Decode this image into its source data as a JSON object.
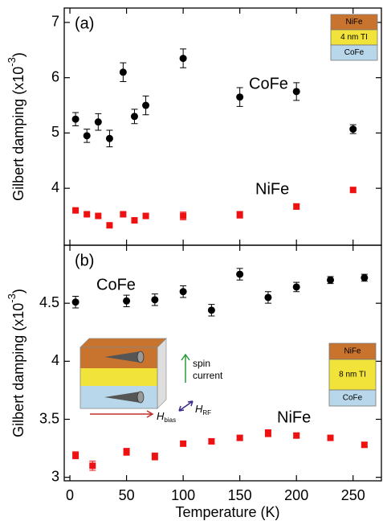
{
  "chart_data": [
    {
      "type": "scatter",
      "panel_label": "(a)",
      "xlim": [
        -5,
        275
      ],
      "ylim": [
        2.97,
        7.26
      ],
      "yticks": [
        4,
        5,
        6,
        7
      ],
      "ylabel": [
        "Gilbert damping (x10",
        "-3",
        ")"
      ],
      "stack": [
        "NiFe",
        "4 nm TI",
        "CoFe"
      ],
      "series": [
        {
          "name": "CoFe",
          "color": "#000000",
          "marker": "circle",
          "x": [
            5,
            15,
            25,
            35,
            47,
            57,
            67,
            100,
            150,
            200,
            250
          ],
          "values": [
            5.25,
            4.95,
            5.2,
            4.9,
            6.1,
            5.3,
            5.5,
            6.35,
            5.65,
            5.75,
            5.07
          ],
          "errors": [
            0.12,
            0.12,
            0.15,
            0.15,
            0.17,
            0.13,
            0.17,
            0.17,
            0.17,
            0.16,
            0.08
          ]
        },
        {
          "name": "NiFe",
          "color": "#ee1111",
          "marker": "square",
          "x": [
            5,
            15,
            25,
            35,
            47,
            57,
            67,
            100,
            150,
            200,
            250
          ],
          "values": [
            3.6,
            3.53,
            3.5,
            3.33,
            3.53,
            3.42,
            3.5,
            3.5,
            3.52,
            3.67,
            3.97
          ],
          "errors": [
            0.03,
            0.03,
            0.03,
            0.03,
            0.03,
            0.03,
            0.03,
            0.07,
            0.06,
            0.05,
            0.04
          ]
        }
      ]
    },
    {
      "type": "scatter",
      "panel_label": "(b)",
      "xlim": [
        -5,
        275
      ],
      "xticks": [
        0,
        50,
        100,
        150,
        200,
        250
      ],
      "xlabel": "Temperature (K)",
      "ylim": [
        2.97,
        5.0
      ],
      "yticks": [
        3,
        3.5,
        4,
        4.5
      ],
      "ylabel": [
        "Gilbert damping (x10",
        "-3",
        ")"
      ],
      "stack": [
        "NiFe",
        "8 nm TI",
        "CoFe"
      ],
      "diagram_labels": {
        "spin_current": [
          "spin",
          "current"
        ],
        "h_bias": [
          "H",
          "bias"
        ],
        "h_rf": [
          "H",
          "RF"
        ]
      },
      "series": [
        {
          "name": "CoFe",
          "color": "#000000",
          "marker": "circle",
          "x": [
            5,
            50,
            75,
            100,
            125,
            150,
            175,
            200,
            230,
            260
          ],
          "values": [
            4.51,
            4.52,
            4.53,
            4.6,
            4.44,
            4.75,
            4.55,
            4.64,
            4.7,
            4.72
          ],
          "errors": [
            0.05,
            0.05,
            0.05,
            0.05,
            0.05,
            0.05,
            0.05,
            0.04,
            0.03,
            0.03
          ]
        },
        {
          "name": "NiFe",
          "color": "#ee1111",
          "marker": "square",
          "x": [
            5,
            20,
            50,
            75,
            100,
            125,
            150,
            175,
            200,
            230,
            260
          ],
          "values": [
            3.19,
            3.1,
            3.22,
            3.18,
            3.29,
            3.31,
            3.34,
            3.38,
            3.36,
            3.34,
            3.28
          ],
          "errors": [
            0.03,
            0.04,
            0.03,
            0.03,
            0.02,
            0.02,
            0.02,
            0.03,
            0.02,
            0.02,
            0.02
          ]
        }
      ]
    }
  ]
}
